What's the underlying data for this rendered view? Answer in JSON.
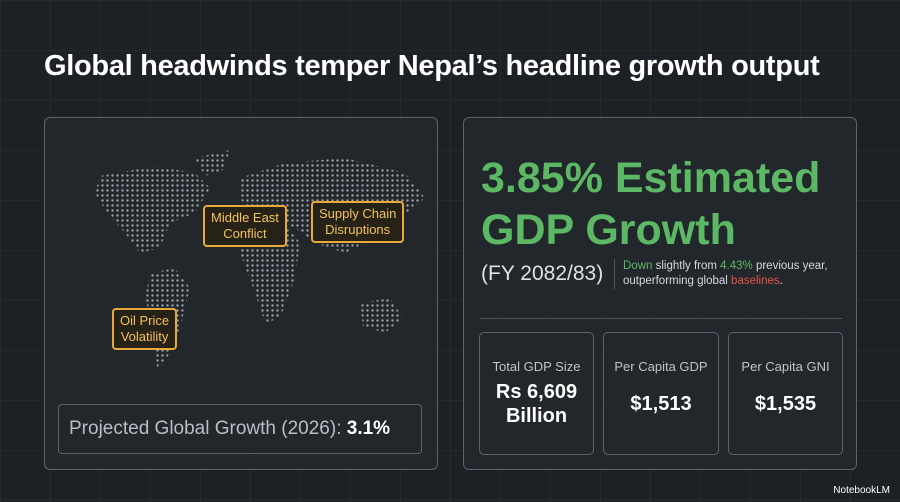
{
  "header": {
    "title": "Global headwinds temper Nepal’s headline growth output"
  },
  "map_panel": {
    "callouts": [
      {
        "lines": [
          "Middle East",
          "Conflict"
        ]
      },
      {
        "lines": [
          "Supply Chain",
          "Disruptions"
        ]
      },
      {
        "lines": [
          "Oil Price",
          "Volatility"
        ]
      }
    ],
    "projection": {
      "label": "Projected Global Growth (2026):",
      "value": "3.1%"
    }
  },
  "gdp_panel": {
    "headline": "3.85% Estimated GDP Growth",
    "period": "(FY 2082/83)",
    "note": [
      "Down",
      " slightly from ",
      "4.43%",
      " previous year, outperforming global ",
      "baselines",
      "."
    ],
    "cards": [
      {
        "label": "Total GDP Size",
        "value": "Rs 6,609 Billion"
      },
      {
        "label": "Per Capita GDP",
        "value": "$1,513"
      },
      {
        "label": "Per Capita GNI",
        "value": "$1,535"
      }
    ]
  },
  "footer": {
    "brand": "NotebookLM"
  }
}
